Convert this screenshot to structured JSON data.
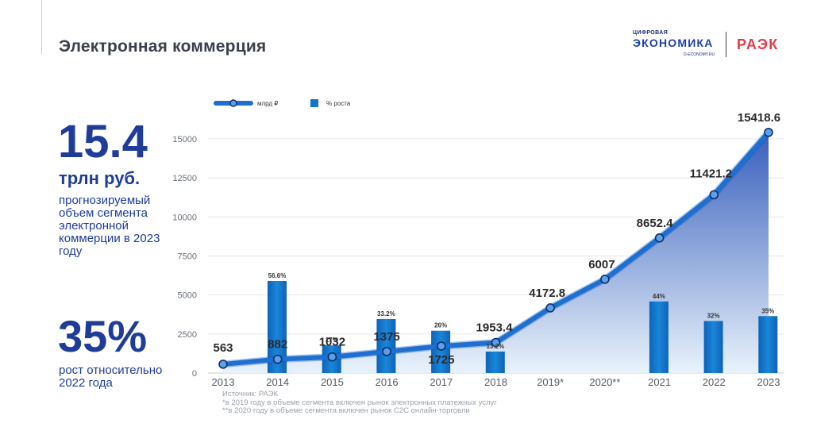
{
  "page": {
    "title": "Электронная коммерция",
    "logo": {
      "line1": "ЦИФРОВАЯ",
      "line2": "ЭКОНОМИКА",
      "line3": "D-ECONOMY.RU",
      "partner": "РАЭК"
    },
    "stat1": {
      "value": "15.4",
      "unit": "трлн руб.",
      "description": "прогнозируемый объем сегмента электронной коммерции в 2023 году"
    },
    "stat2": {
      "value": "35%",
      "description": "рост относительно 2022 года"
    },
    "notes": {
      "source": "Источник: РАЭК",
      "note1": "*в 2019 году в объеме сегмента включен рынок электронных платежных услуг",
      "note2": "**в 2020 году в объеме сегмента включен рынок C2C онлайн-торговли"
    }
  },
  "chart_data": {
    "type": "bar",
    "categories": [
      "2013",
      "2014",
      "2015",
      "2016",
      "2017",
      "2018",
      "2019*",
      "2020**",
      "2021",
      "2022",
      "2023"
    ],
    "series": [
      {
        "name": "млрд ₽",
        "type": "area-line",
        "values": [
          563,
          882,
          1032,
          1375,
          1725,
          1953.4,
          4172.8,
          6007,
          8652.4,
          11421.2,
          15418.6
        ],
        "labels": [
          "563",
          "882",
          "1032",
          "1375",
          "1725",
          "1953.4",
          "4172.8",
          "6007",
          "8652.4",
          "11421.2",
          "15418.6"
        ]
      },
      {
        "name": "% роста",
        "type": "bar",
        "values": [
          null,
          56.6,
          17,
          33.2,
          26,
          13.2,
          null,
          null,
          44,
          32,
          35
        ],
        "labels": [
          "",
          "56.6%",
          "17%",
          "33.2%",
          "26%",
          "13.2%",
          "",
          "",
          "44%",
          "32%",
          "35%"
        ]
      }
    ],
    "yticks": [
      0,
      2500,
      5000,
      7500,
      10000,
      12500,
      15000
    ],
    "ytick_labels": [
      "0",
      "2500",
      "5000",
      "7500",
      "10000",
      "12500",
      "15000"
    ],
    "grid": true,
    "legend_position": "top-left",
    "colors": {
      "line": "#1e6fd0",
      "bar": "#1574c9",
      "area_top": "#2d56b8",
      "area_bottom": "#e8f2fb",
      "labels": "#2a2a2a"
    }
  }
}
